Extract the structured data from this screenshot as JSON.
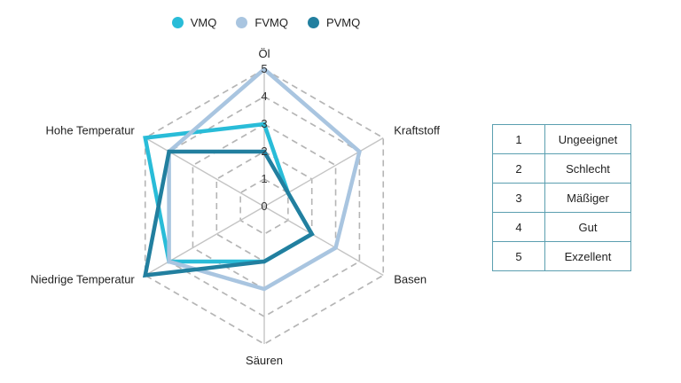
{
  "chart_data": {
    "type": "radar",
    "axes": [
      "Öl",
      "Kraftstoff",
      "Basen",
      "Säuren",
      "Niedrige Temperatur",
      "Hohe Temperatur"
    ],
    "range": [
      0,
      5
    ],
    "tick_labels": [
      "0",
      "1",
      "2",
      "3",
      "4",
      "5"
    ],
    "grid": true,
    "legend_position": "top",
    "series": [
      {
        "name": "VMQ",
        "color": "#29bcd8",
        "values": [
          3,
          1,
          2,
          2,
          4,
          5
        ]
      },
      {
        "name": "FVMQ",
        "color": "#a9c5e0",
        "values": [
          5,
          4,
          3,
          3,
          4,
          4
        ]
      },
      {
        "name": "PVMQ",
        "color": "#227f9f",
        "values": [
          2,
          1,
          2,
          2,
          5,
          4
        ]
      }
    ]
  },
  "rating_table": [
    {
      "num": "1",
      "label": "Ungeeignet"
    },
    {
      "num": "2",
      "label": "Schlecht"
    },
    {
      "num": "3",
      "label": "Mäßiger"
    },
    {
      "num": "4",
      "label": "Gut"
    },
    {
      "num": "5",
      "label": "Exzellent"
    }
  ]
}
